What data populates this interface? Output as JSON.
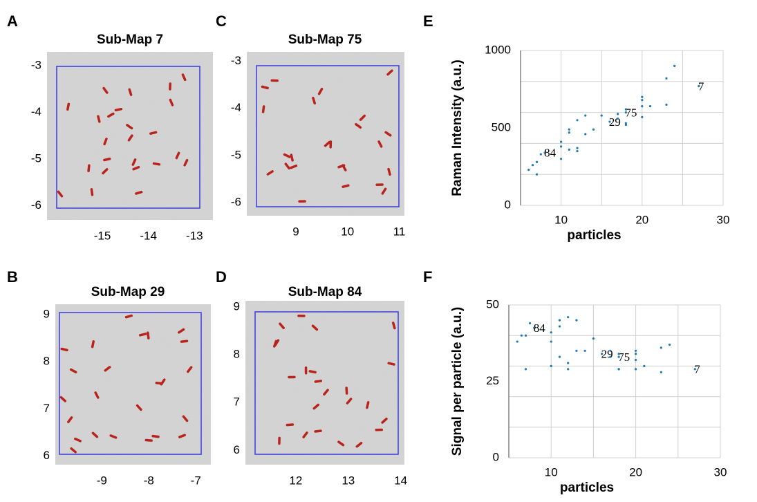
{
  "chart_data": [
    {
      "type": "image",
      "panel": "A",
      "title": "Sub-Map 7",
      "xlim": [
        -16.2,
        -12.6
      ],
      "ylim": [
        -6.3,
        -2.7
      ],
      "xticks": [
        -15,
        -14,
        -13
      ],
      "yticks": [
        -3,
        -4,
        -5,
        -6
      ],
      "color": "#3a3adc"
    },
    {
      "type": "image",
      "panel": "B",
      "title": "Sub-Map 29",
      "xlim": [
        -9.99,
        -6.68
      ],
      "ylim": [
        5.82,
        9.22
      ],
      "xticks": [
        -9,
        -8,
        -7
      ],
      "yticks": [
        9,
        8,
        7,
        6
      ],
      "color": "#3a3adc"
    },
    {
      "type": "image",
      "panel": "C",
      "title": "Sub-Map 75",
      "xlim": [
        8.05,
        11.1
      ],
      "ylim": [
        -6.28,
        -2.8
      ],
      "xticks": [
        9,
        10,
        11
      ],
      "yticks": [
        -3,
        -4,
        -5,
        -6
      ],
      "color": "#3a3adc"
    },
    {
      "type": "image",
      "panel": "D",
      "title": "Sub-Map 84",
      "xlim": [
        11.04,
        14.07
      ],
      "ylim": [
        5.7,
        9.13
      ],
      "xticks": [
        12,
        13,
        14
      ],
      "yticks": [
        9,
        8,
        7,
        6
      ],
      "color": "#3a3adc"
    },
    {
      "type": "scatter",
      "panel": "E",
      "x_label": "particles",
      "y_label": "Raman Intensity (a.u.)",
      "xlim": [
        5,
        30
      ],
      "ylim": [
        0,
        1000
      ],
      "xticks": [
        10,
        20,
        30
      ],
      "yticks": [
        0,
        500,
        1000
      ],
      "xgrid": [
        5,
        10,
        15,
        20,
        25,
        30
      ],
      "ygrid": [
        0,
        200,
        400,
        600,
        800,
        1000
      ],
      "color": "#1f77b4",
      "x": [
        6,
        6.5,
        7,
        7,
        7.5,
        8,
        10,
        10,
        10,
        11,
        11,
        11,
        12,
        12,
        12,
        13,
        13,
        14,
        15,
        16,
        17,
        17,
        18,
        18,
        18,
        18,
        20,
        20,
        20,
        20,
        21,
        23,
        23,
        24,
        27
      ],
      "values": [
        230,
        260,
        200,
        280,
        330,
        340,
        300,
        380,
        410,
        360,
        470,
        490,
        350,
        370,
        550,
        460,
        580,
        490,
        580,
        540,
        560,
        590,
        520,
        530,
        600,
        620,
        570,
        640,
        680,
        700,
        640,
        650,
        820,
        900,
        770
      ],
      "point_labels": [
        null,
        null,
        null,
        null,
        null,
        "84",
        null,
        null,
        null,
        null,
        null,
        null,
        null,
        null,
        null,
        null,
        null,
        null,
        null,
        "29",
        null,
        null,
        null,
        null,
        "75",
        null,
        null,
        null,
        null,
        null,
        null,
        null,
        null,
        null,
        "7"
      ]
    },
    {
      "type": "scatter",
      "panel": "F",
      "x_label": "particles",
      "y_label": "Signal per particle (a.u.)",
      "xlim": [
        5,
        30
      ],
      "ylim": [
        0,
        50
      ],
      "xticks": [
        10,
        20,
        30
      ],
      "yticks": [
        0,
        25,
        50
      ],
      "xgrid": [
        5,
        10,
        15,
        20,
        25,
        30
      ],
      "ygrid": [
        0,
        10,
        20,
        30,
        40,
        50
      ],
      "color": "#1f77b4",
      "x": [
        6,
        6.5,
        7,
        7,
        7.5,
        8,
        10,
        10,
        10,
        11,
        11,
        11,
        12,
        12,
        12,
        13,
        13,
        14,
        15,
        16,
        17,
        17,
        18,
        18,
        18,
        18,
        20,
        20,
        20,
        20,
        21,
        23,
        23,
        24,
        27
      ],
      "values": [
        38,
        40,
        29,
        40,
        44,
        42.5,
        30,
        38,
        41,
        33,
        43,
        45,
        29,
        31,
        46,
        35,
        45,
        35,
        39,
        34,
        33,
        35,
        29,
        29,
        33,
        34,
        29,
        32,
        34,
        35,
        30,
        28,
        36,
        37,
        29
      ],
      "point_labels": [
        null,
        null,
        null,
        null,
        null,
        "84",
        null,
        null,
        null,
        null,
        null,
        null,
        null,
        null,
        null,
        null,
        null,
        null,
        null,
        "29",
        null,
        null,
        null,
        null,
        "75",
        null,
        null,
        null,
        null,
        null,
        null,
        null,
        null,
        null,
        "7"
      ]
    }
  ]
}
